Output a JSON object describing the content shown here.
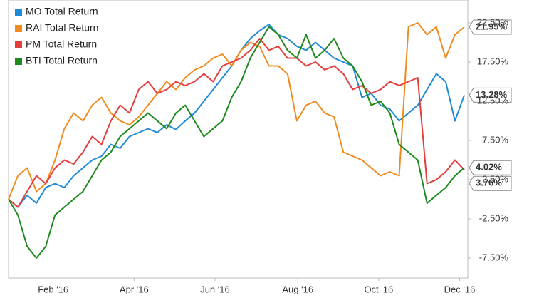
{
  "chart_data": {
    "type": "line",
    "xlim": [
      0,
      49
    ],
    "xticks": [
      {
        "value": 4.8,
        "label": "Feb '16"
      },
      {
        "value": 13.5,
        "label": "Apr '16"
      },
      {
        "value": 22.2,
        "label": "Jun '16"
      },
      {
        "value": 31.1,
        "label": "Aug '16"
      },
      {
        "value": 39.8,
        "label": "Oct '16"
      },
      {
        "value": 48.5,
        "label": "Dec '16"
      }
    ],
    "ylim": [
      -10,
      25
    ],
    "yticks": [
      {
        "value": -7.5,
        "label": "-7.50%"
      },
      {
        "value": -2.5,
        "label": "-2.50%"
      },
      {
        "value": 2.5,
        "label": "2.50%"
      },
      {
        "value": 7.5,
        "label": "7.50%"
      },
      {
        "value": 12.5,
        "label": "12.50%"
      },
      {
        "value": 17.5,
        "label": "17.50%"
      },
      {
        "value": 22.5,
        "label": "22.50%"
      }
    ],
    "legend": "top-left",
    "series": [
      {
        "name": "MO Total Return",
        "color": "#1f8ad8",
        "values": [
          0,
          -1,
          0.5,
          -0.5,
          1.5,
          2,
          1.5,
          3,
          4,
          5,
          5.5,
          7,
          6.5,
          8,
          8.5,
          9,
          8.5,
          9.5,
          8.9,
          10,
          11,
          12.5,
          14,
          15.5,
          17,
          19,
          20.5,
          21.5,
          22.3,
          21,
          20.5,
          19.5,
          19,
          20,
          19,
          18,
          17.5,
          17,
          13,
          13.5,
          12,
          11.5,
          10,
          11,
          12,
          14,
          16,
          15,
          10,
          13.28
        ],
        "value_labels": [
          null,
          null,
          null,
          null,
          null,
          null,
          null,
          null,
          null,
          null,
          null,
          null,
          null,
          null,
          null,
          null,
          null,
          null,
          null,
          null,
          null,
          null,
          null,
          null,
          null,
          null,
          null,
          null,
          null,
          null,
          null,
          null,
          null,
          null,
          null,
          null,
          null,
          null,
          null,
          null,
          null,
          null,
          null,
          null,
          null,
          null,
          null,
          null,
          null,
          "13.28%"
        ]
      },
      {
        "name": "RAI Total Return",
        "color": "#f08c1f",
        "values": [
          0,
          3,
          4,
          1,
          2,
          5,
          9,
          11,
          10,
          12,
          13,
          11,
          10,
          9.5,
          10.5,
          12,
          13.5,
          15,
          14,
          15.5,
          16.5,
          17,
          18,
          18.5,
          17,
          19,
          20,
          19.5,
          17,
          17,
          16,
          10,
          12,
          12.5,
          11,
          10.5,
          6,
          5.5,
          5,
          4,
          3,
          3.5,
          3,
          22,
          22.5,
          21,
          22,
          18,
          21,
          21.95
        ],
        "value_labels": [
          null,
          null,
          null,
          null,
          null,
          null,
          null,
          null,
          null,
          null,
          null,
          null,
          null,
          null,
          null,
          null,
          null,
          null,
          null,
          null,
          null,
          null,
          null,
          null,
          null,
          null,
          null,
          null,
          null,
          null,
          null,
          null,
          null,
          null,
          null,
          null,
          null,
          null,
          null,
          null,
          null,
          null,
          null,
          null,
          null,
          null,
          null,
          null,
          null,
          "21.95%"
        ]
      },
      {
        "name": "PM Total Return",
        "color": "#e53c3c",
        "values": [
          0,
          -1,
          1,
          3,
          2,
          4,
          5,
          4.5,
          6,
          8,
          7,
          10,
          12,
          11,
          14,
          15,
          13.5,
          14,
          15,
          14.5,
          15,
          16,
          15,
          17,
          17.5,
          18,
          19,
          20.5,
          19,
          19.5,
          18,
          18,
          17,
          17.5,
          16.5,
          17,
          16,
          14,
          14.5,
          13.5,
          14,
          15,
          14.5,
          15,
          15.5,
          2,
          2.5,
          3.5,
          5,
          3.76
        ],
        "value_labels": [
          null,
          null,
          null,
          null,
          null,
          null,
          null,
          null,
          null,
          null,
          null,
          null,
          null,
          null,
          null,
          null,
          null,
          null,
          null,
          null,
          null,
          null,
          null,
          null,
          null,
          null,
          null,
          null,
          null,
          null,
          null,
          null,
          null,
          null,
          null,
          null,
          null,
          null,
          null,
          null,
          null,
          null,
          null,
          null,
          null,
          null,
          null,
          null,
          null,
          "3.76%"
        ]
      },
      {
        "name": "BTI Total Return",
        "color": "#1e8a1e",
        "values": [
          0,
          -2,
          -6,
          -7.5,
          -6,
          -2,
          -1,
          0,
          1,
          3,
          5,
          6,
          8,
          9,
          10,
          11,
          10,
          9,
          11,
          12,
          10,
          8,
          9,
          10,
          13,
          15,
          18,
          20,
          22,
          21,
          19,
          18,
          21,
          18,
          19,
          20.5,
          18,
          17,
          15,
          12,
          12.5,
          11,
          7,
          6,
          5,
          -0.5,
          0.5,
          1.5,
          3,
          4.02
        ],
        "value_labels": [
          null,
          null,
          null,
          null,
          null,
          null,
          null,
          null,
          null,
          null,
          null,
          null,
          null,
          null,
          null,
          null,
          null,
          null,
          null,
          null,
          null,
          null,
          null,
          null,
          null,
          null,
          null,
          null,
          null,
          null,
          null,
          null,
          null,
          null,
          null,
          null,
          null,
          null,
          null,
          null,
          null,
          null,
          null,
          null,
          null,
          null,
          null,
          null,
          null,
          "4.02%"
        ]
      }
    ]
  }
}
